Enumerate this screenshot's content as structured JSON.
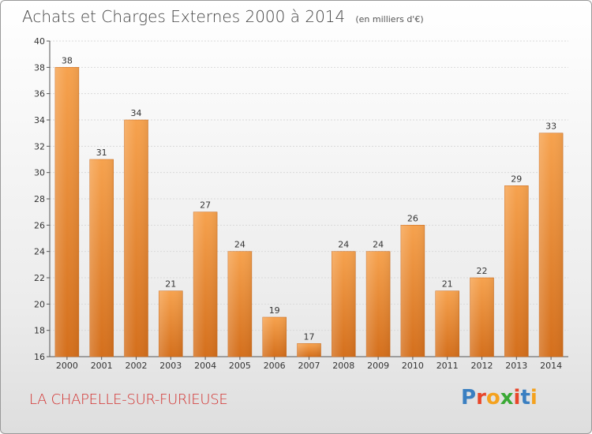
{
  "header": {
    "title": "Achats et Charges Externes 2000 à 2014",
    "subtitle": "(en milliers d'€)"
  },
  "footer": {
    "commune": "LA CHAPELLE-SUR-FURIEUSE",
    "logo_text": "Proxiti",
    "logo_colors": [
      "#3a7fc1",
      "#e8462a",
      "#f4a21f",
      "#3aa935",
      "#e8462a",
      "#3a7fc1",
      "#f4a21f"
    ]
  },
  "chart_data": {
    "type": "bar",
    "categories": [
      "2000",
      "2001",
      "2002",
      "2003",
      "2004",
      "2005",
      "2006",
      "2007",
      "2008",
      "2009",
      "2010",
      "2011",
      "2012",
      "2013",
      "2014"
    ],
    "values": [
      38,
      31,
      34,
      21,
      27,
      24,
      19,
      17,
      24,
      24,
      26,
      21,
      22,
      29,
      33
    ],
    "title": "Achats et Charges Externes 2000 à 2014",
    "subtitle": "(en milliers d'€)",
    "ylim": [
      16,
      40
    ],
    "yticks": [
      16,
      18,
      20,
      22,
      24,
      26,
      28,
      30,
      32,
      34,
      36,
      38,
      40
    ],
    "grid": true,
    "bar_color_top": "#f6a24e",
    "bar_color_bottom": "#d46f1c"
  }
}
